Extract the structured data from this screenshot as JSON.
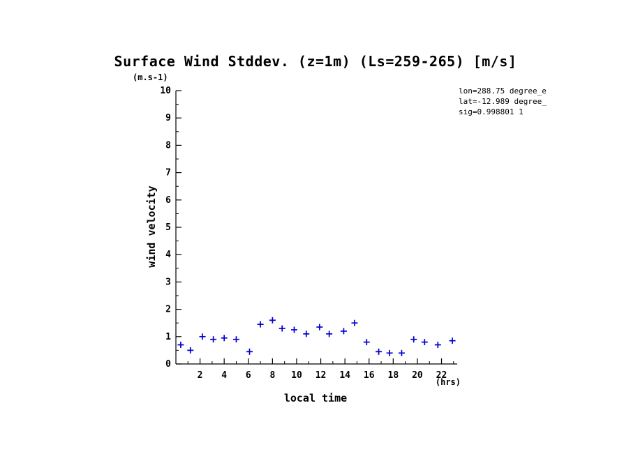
{
  "title": "Surface Wind Stddev. (z=1m) (Ls=259-265) [m/s]",
  "ylabel": "wind velocity",
  "y_unit_label": "(m.s-1)",
  "xlabel": "local time",
  "x_unit_label": "(hrs)",
  "annotations": [
    "lon=288.75 degree_e",
    "lat=-12.989 degree_",
    "sig=0.998801 1"
  ],
  "colors": {
    "axis": "#000000",
    "marker": "#0000cc",
    "background": "#ffffff"
  },
  "chart_data": {
    "type": "scatter",
    "marker": "+",
    "title": "Surface Wind Stddev. (z=1m) (Ls=259-265) [m/s]",
    "xlabel": "local time (hrs)",
    "ylabel": "wind velocity (m.s-1)",
    "xlim": [
      0,
      23.3
    ],
    "ylim": [
      0,
      10
    ],
    "grid": false,
    "legend": null,
    "xticks": [
      2,
      4,
      6,
      8,
      10,
      12,
      14,
      16,
      18,
      20,
      22
    ],
    "xminor": [
      1,
      3,
      5,
      7,
      9,
      11,
      13,
      15,
      17,
      19,
      21,
      23
    ],
    "yticks": [
      0,
      1,
      2,
      3,
      4,
      5,
      6,
      7,
      8,
      9,
      10
    ],
    "yminor": [
      0.5,
      1.5,
      2.5,
      3.5,
      4.5,
      5.5,
      6.5,
      7.5,
      8.5,
      9.5
    ],
    "x": [
      0.4,
      1.2,
      2.2,
      3.1,
      4.0,
      5.0,
      6.1,
      7.0,
      8.0,
      8.8,
      9.8,
      10.8,
      11.9,
      12.7,
      13.9,
      14.8,
      15.8,
      16.8,
      17.7,
      18.7,
      19.7,
      20.6,
      21.7,
      22.9
    ],
    "y": [
      0.7,
      0.5,
      1.0,
      0.9,
      0.95,
      0.9,
      0.45,
      1.45,
      1.6,
      1.3,
      1.25,
      1.1,
      1.35,
      1.1,
      1.2,
      1.5,
      0.8,
      0.45,
      0.4,
      0.4,
      0.9,
      0.8,
      0.7,
      0.85
    ]
  }
}
